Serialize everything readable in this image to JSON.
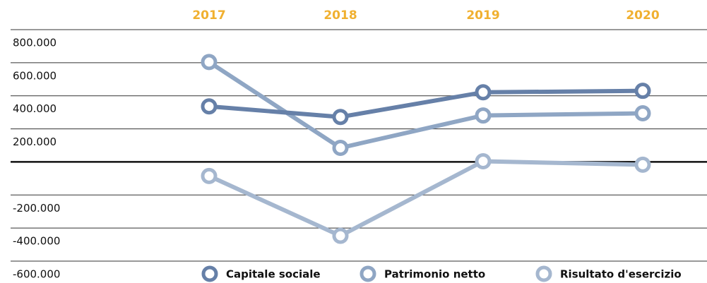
{
  "chart_data": {
    "type": "line",
    "categories": [
      "2017",
      "2018",
      "2019",
      "2020"
    ],
    "series": [
      {
        "name": "Capitale sociale",
        "color": "#6680a8",
        "values": [
          336000,
          272000,
          421000,
          430000
        ]
      },
      {
        "name": "Patrimonio netto",
        "color": "#8fa6c4",
        "values": [
          604000,
          85000,
          281000,
          294000
        ]
      },
      {
        "name": "Risultato d'esercizio",
        "color": "#a5b7cf",
        "values": [
          -85000,
          -447000,
          4000,
          -17000
        ]
      }
    ],
    "ylim": [
      -600000,
      800000
    ],
    "yticks": [
      {
        "value": 800000,
        "label": "800.000"
      },
      {
        "value": 600000,
        "label": "600.000"
      },
      {
        "value": 400000,
        "label": "400.000"
      },
      {
        "value": 200000,
        "label": "200.000"
      },
      {
        "value": -200000,
        "label": "-200.000"
      },
      {
        "value": -400000,
        "label": "-400.000"
      },
      {
        "value": -600000,
        "label": "-600.000"
      }
    ],
    "grid": true,
    "legend": "bottom"
  }
}
